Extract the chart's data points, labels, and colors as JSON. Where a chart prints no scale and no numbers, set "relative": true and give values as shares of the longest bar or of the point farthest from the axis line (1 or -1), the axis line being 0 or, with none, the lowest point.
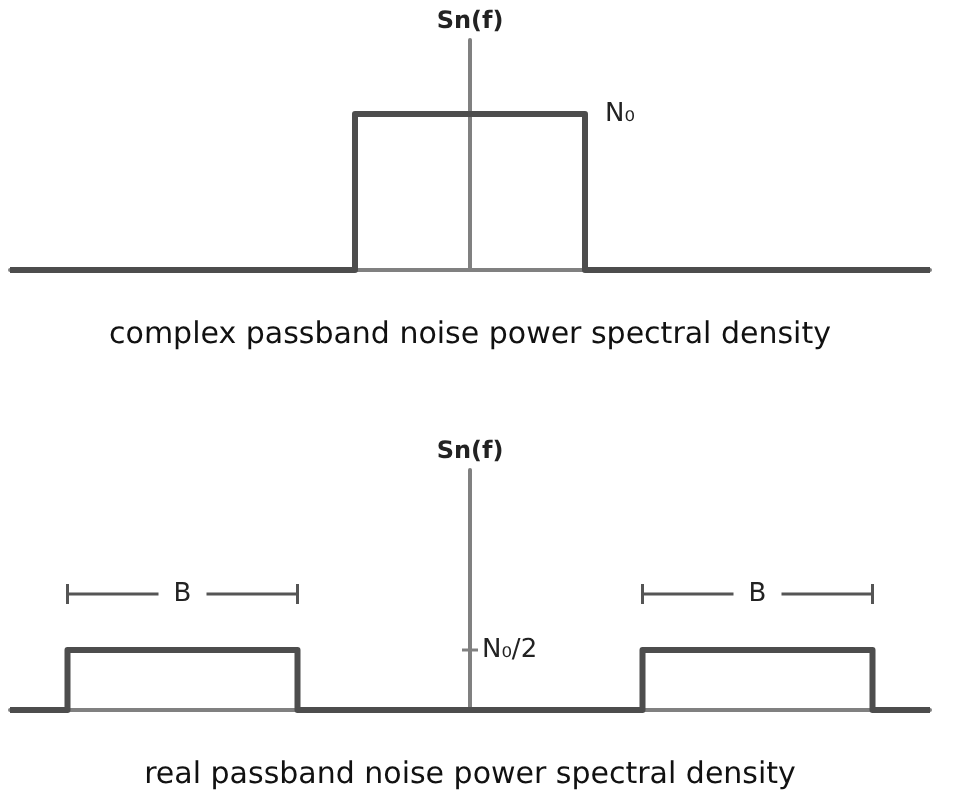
{
  "chart_data": [
    {
      "type": "step",
      "relative": true,
      "ylabel": "Sn(f)",
      "xlabel": "complex passband noise power spectral density",
      "color": "#4d4d4d",
      "categories": [
        null,
        null,
        null,
        null,
        null,
        null,
        null,
        null,
        null,
        null,
        null,
        null,
        null,
        null,
        null,
        null,
        null,
        null,
        null,
        null,
        null,
        null,
        null,
        null,
        null,
        null,
        null,
        null,
        null,
        null,
        null,
        null,
        null,
        null,
        null,
        null,
        null,
        null,
        null,
        null,
        null,
        null,
        null,
        null,
        null,
        null,
        null,
        null,
        null
      ],
      "values": [
        0,
        0,
        0,
        0,
        0,
        0,
        0,
        0,
        0,
        0,
        0,
        0,
        0,
        0,
        0,
        0,
        0,
        0,
        1,
        1,
        1,
        1,
        1,
        1,
        1,
        1,
        1,
        1,
        1,
        1,
        0,
        0,
        0,
        0,
        0,
        0,
        0,
        0,
        0,
        0,
        0,
        0,
        0,
        0,
        0,
        0,
        0,
        0,
        0
      ],
      "annotations": [
        "N₀"
      ]
    },
    {
      "type": "step",
      "relative": true,
      "ylabel": "Sn(f)",
      "xlabel": "real passband noise power spectral density",
      "color": "#4d4d4d",
      "categories": [
        null,
        null,
        null,
        null,
        null,
        null,
        null,
        null,
        null,
        null,
        null,
        null,
        null,
        null,
        null,
        null,
        null,
        null,
        null,
        null,
        null,
        null,
        null,
        null,
        null,
        null,
        null,
        null,
        null,
        null,
        null,
        null,
        null,
        null,
        null,
        null,
        null,
        null,
        null,
        null,
        null,
        null,
        null,
        null,
        null,
        null,
        null,
        null,
        null
      ],
      "values": [
        0,
        0,
        0,
        1,
        1,
        1,
        1,
        1,
        1,
        1,
        1,
        1,
        1,
        1,
        1,
        0,
        0,
        0,
        0,
        0,
        0,
        0,
        0,
        0,
        0,
        0,
        0,
        0,
        0,
        0,
        0,
        0,
        0,
        1,
        1,
        1,
        1,
        1,
        1,
        1,
        1,
        1,
        1,
        1,
        1,
        0,
        0,
        0,
        0
      ],
      "annotations": [
        "N₀/2",
        "B",
        "B"
      ]
    }
  ]
}
